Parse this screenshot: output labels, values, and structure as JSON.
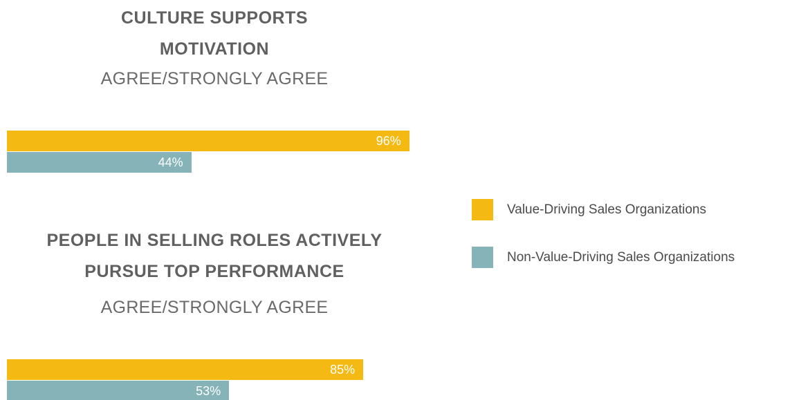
{
  "chart_data": {
    "type": "bar",
    "categories": [
      "CULTURE SUPPORTS MOTIVATION",
      "PEOPLE IN SELLING ROLES ACTIVELY PURSUE TOP PERFORMANCE"
    ],
    "category_subtitle": "AGREE/STRONGLY AGREE",
    "series": [
      {
        "name": "Value-Driving Sales Organizations",
        "color": "#f5b914",
        "values": [
          96,
          85
        ],
        "value_labels": [
          "96%",
          "85%"
        ]
      },
      {
        "name": "Non-Value-Driving Sales Organizations",
        "color": "#86b3b8",
        "values": [
          44,
          53
        ],
        "value_labels": [
          "44%",
          "53%"
        ]
      }
    ]
  }
}
